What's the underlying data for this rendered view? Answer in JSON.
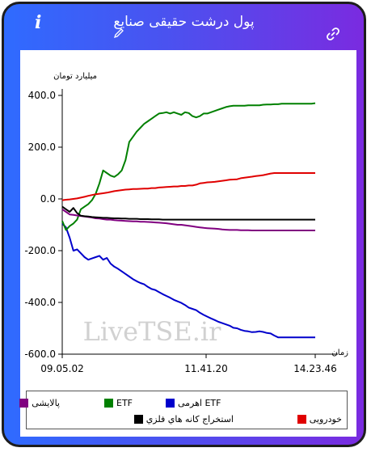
{
  "header": {
    "title": "پول درشت حقيقی صنايع",
    "info_icon": "i"
  },
  "watermark": "LiveTSE.ir",
  "chart_data": {
    "type": "line",
    "ylabel": "ميليارد تومان",
    "xlabel": "زمان",
    "ylim": [
      -600,
      400
    ],
    "yticks": [
      400,
      200,
      0,
      -200,
      -400,
      -600
    ],
    "ytick_labels": [
      "400.0",
      "200.0",
      "0.0",
      "-200.0",
      "-400.0",
      "-600.0"
    ],
    "xtick_labels": [
      "09.05.02",
      "11.41.20",
      "14.23.46"
    ],
    "grid": false,
    "legend_position": "bottom",
    "series": [
      {
        "name": "ETF اهرمی",
        "color": "#0000cc",
        "values": [
          -95,
          -110,
          -150,
          -200,
          -195,
          -210,
          -225,
          -235,
          -230,
          -225,
          -220,
          -235,
          -228,
          -250,
          -262,
          -270,
          -280,
          -290,
          -300,
          -310,
          -318,
          -325,
          -330,
          -340,
          -348,
          -352,
          -360,
          -368,
          -375,
          -382,
          -390,
          -396,
          -402,
          -410,
          -420,
          -425,
          -430,
          -440,
          -448,
          -455,
          -462,
          -468,
          -475,
          -480,
          -485,
          -490,
          -498,
          -500,
          -506,
          -510,
          -512,
          -515,
          -514,
          -512,
          -514,
          -518,
          -520,
          -528,
          -535,
          -535,
          -535,
          -535,
          -535,
          -535,
          -535,
          -535,
          -535,
          -535,
          -535
        ]
      },
      {
        "name": "ETF",
        "color": "#008000",
        "values": [
          -85,
          -120,
          -105,
          -95,
          -80,
          -40,
          -30,
          -20,
          -5,
          20,
          60,
          110,
          100,
          90,
          85,
          95,
          110,
          150,
          220,
          240,
          260,
          275,
          290,
          300,
          310,
          320,
          330,
          332,
          335,
          330,
          335,
          330,
          325,
          335,
          332,
          320,
          315,
          320,
          330,
          330,
          335,
          340,
          345,
          350,
          355,
          358,
          360,
          360,
          360,
          360,
          362,
          362,
          362,
          362,
          364,
          365,
          365,
          366,
          366,
          368,
          368,
          368,
          368,
          368,
          368,
          368,
          368,
          368,
          370
        ]
      },
      {
        "name": "پالايشی",
        "color": "#800080",
        "values": [
          -40,
          -50,
          -60,
          -62,
          -64,
          -66,
          -68,
          -70,
          -72,
          -75,
          -76,
          -78,
          -80,
          -80,
          -82,
          -83,
          -84,
          -85,
          -86,
          -87,
          -87,
          -88,
          -88,
          -89,
          -90,
          -91,
          -92,
          -93,
          -94,
          -96,
          -98,
          -100,
          -100,
          -102,
          -104,
          -106,
          -108,
          -110,
          -112,
          -113,
          -114,
          -115,
          -116,
          -118,
          -119,
          -120,
          -120,
          -120,
          -121,
          -121,
          -121,
          -122,
          -122,
          -122,
          -122,
          -122,
          -122,
          -122,
          -122,
          -122,
          -122,
          -122,
          -122,
          -122,
          -122,
          -122,
          -122,
          -122,
          -122
        ]
      },
      {
        "name": "خودرويی",
        "color": "#e00000",
        "values": [
          -5,
          -3,
          -2,
          0,
          2,
          5,
          8,
          12,
          15,
          18,
          20,
          22,
          24,
          27,
          30,
          32,
          34,
          36,
          37,
          38,
          38,
          39,
          40,
          40,
          42,
          42,
          44,
          45,
          46,
          47,
          48,
          48,
          50,
          50,
          52,
          52,
          55,
          60,
          62,
          64,
          65,
          66,
          68,
          70,
          72,
          74,
          75,
          76,
          80,
          82,
          84,
          86,
          88,
          90,
          92,
          95,
          98,
          100,
          100,
          100,
          100,
          100,
          100,
          100,
          100,
          100,
          100,
          100,
          100
        ]
      },
      {
        "name": "استخراج كانه هاي فلزي",
        "color": "#000000",
        "values": [
          -30,
          -40,
          -50,
          -35,
          -55,
          -65,
          -67,
          -68,
          -70,
          -71,
          -72,
          -73,
          -73,
          -74,
          -75,
          -75,
          -76,
          -76,
          -77,
          -77,
          -77,
          -78,
          -78,
          -78,
          -79,
          -79,
          -79,
          -80,
          -80,
          -80,
          -80,
          -80,
          -80,
          -80,
          -80,
          -80,
          -80,
          -80,
          -80,
          -80,
          -80,
          -80,
          -80,
          -80,
          -80,
          -80,
          -80,
          -80,
          -80,
          -80,
          -80,
          -80,
          -80,
          -80,
          -80,
          -80,
          -80,
          -80,
          -80,
          -80,
          -80,
          -80,
          -80,
          -80,
          -80,
          -80,
          -80,
          -80,
          -80
        ]
      }
    ]
  },
  "legend": [
    {
      "label": "ETF اهرمی",
      "color": "#0000cc"
    },
    {
      "label": "ETF",
      "color": "#008000"
    },
    {
      "label": "پالايشی",
      "color": "#800080"
    },
    {
      "label": "خودرويی",
      "color": "#e00000"
    },
    {
      "label": "استخراج كانه هاي فلزي",
      "color": "#000000"
    }
  ]
}
